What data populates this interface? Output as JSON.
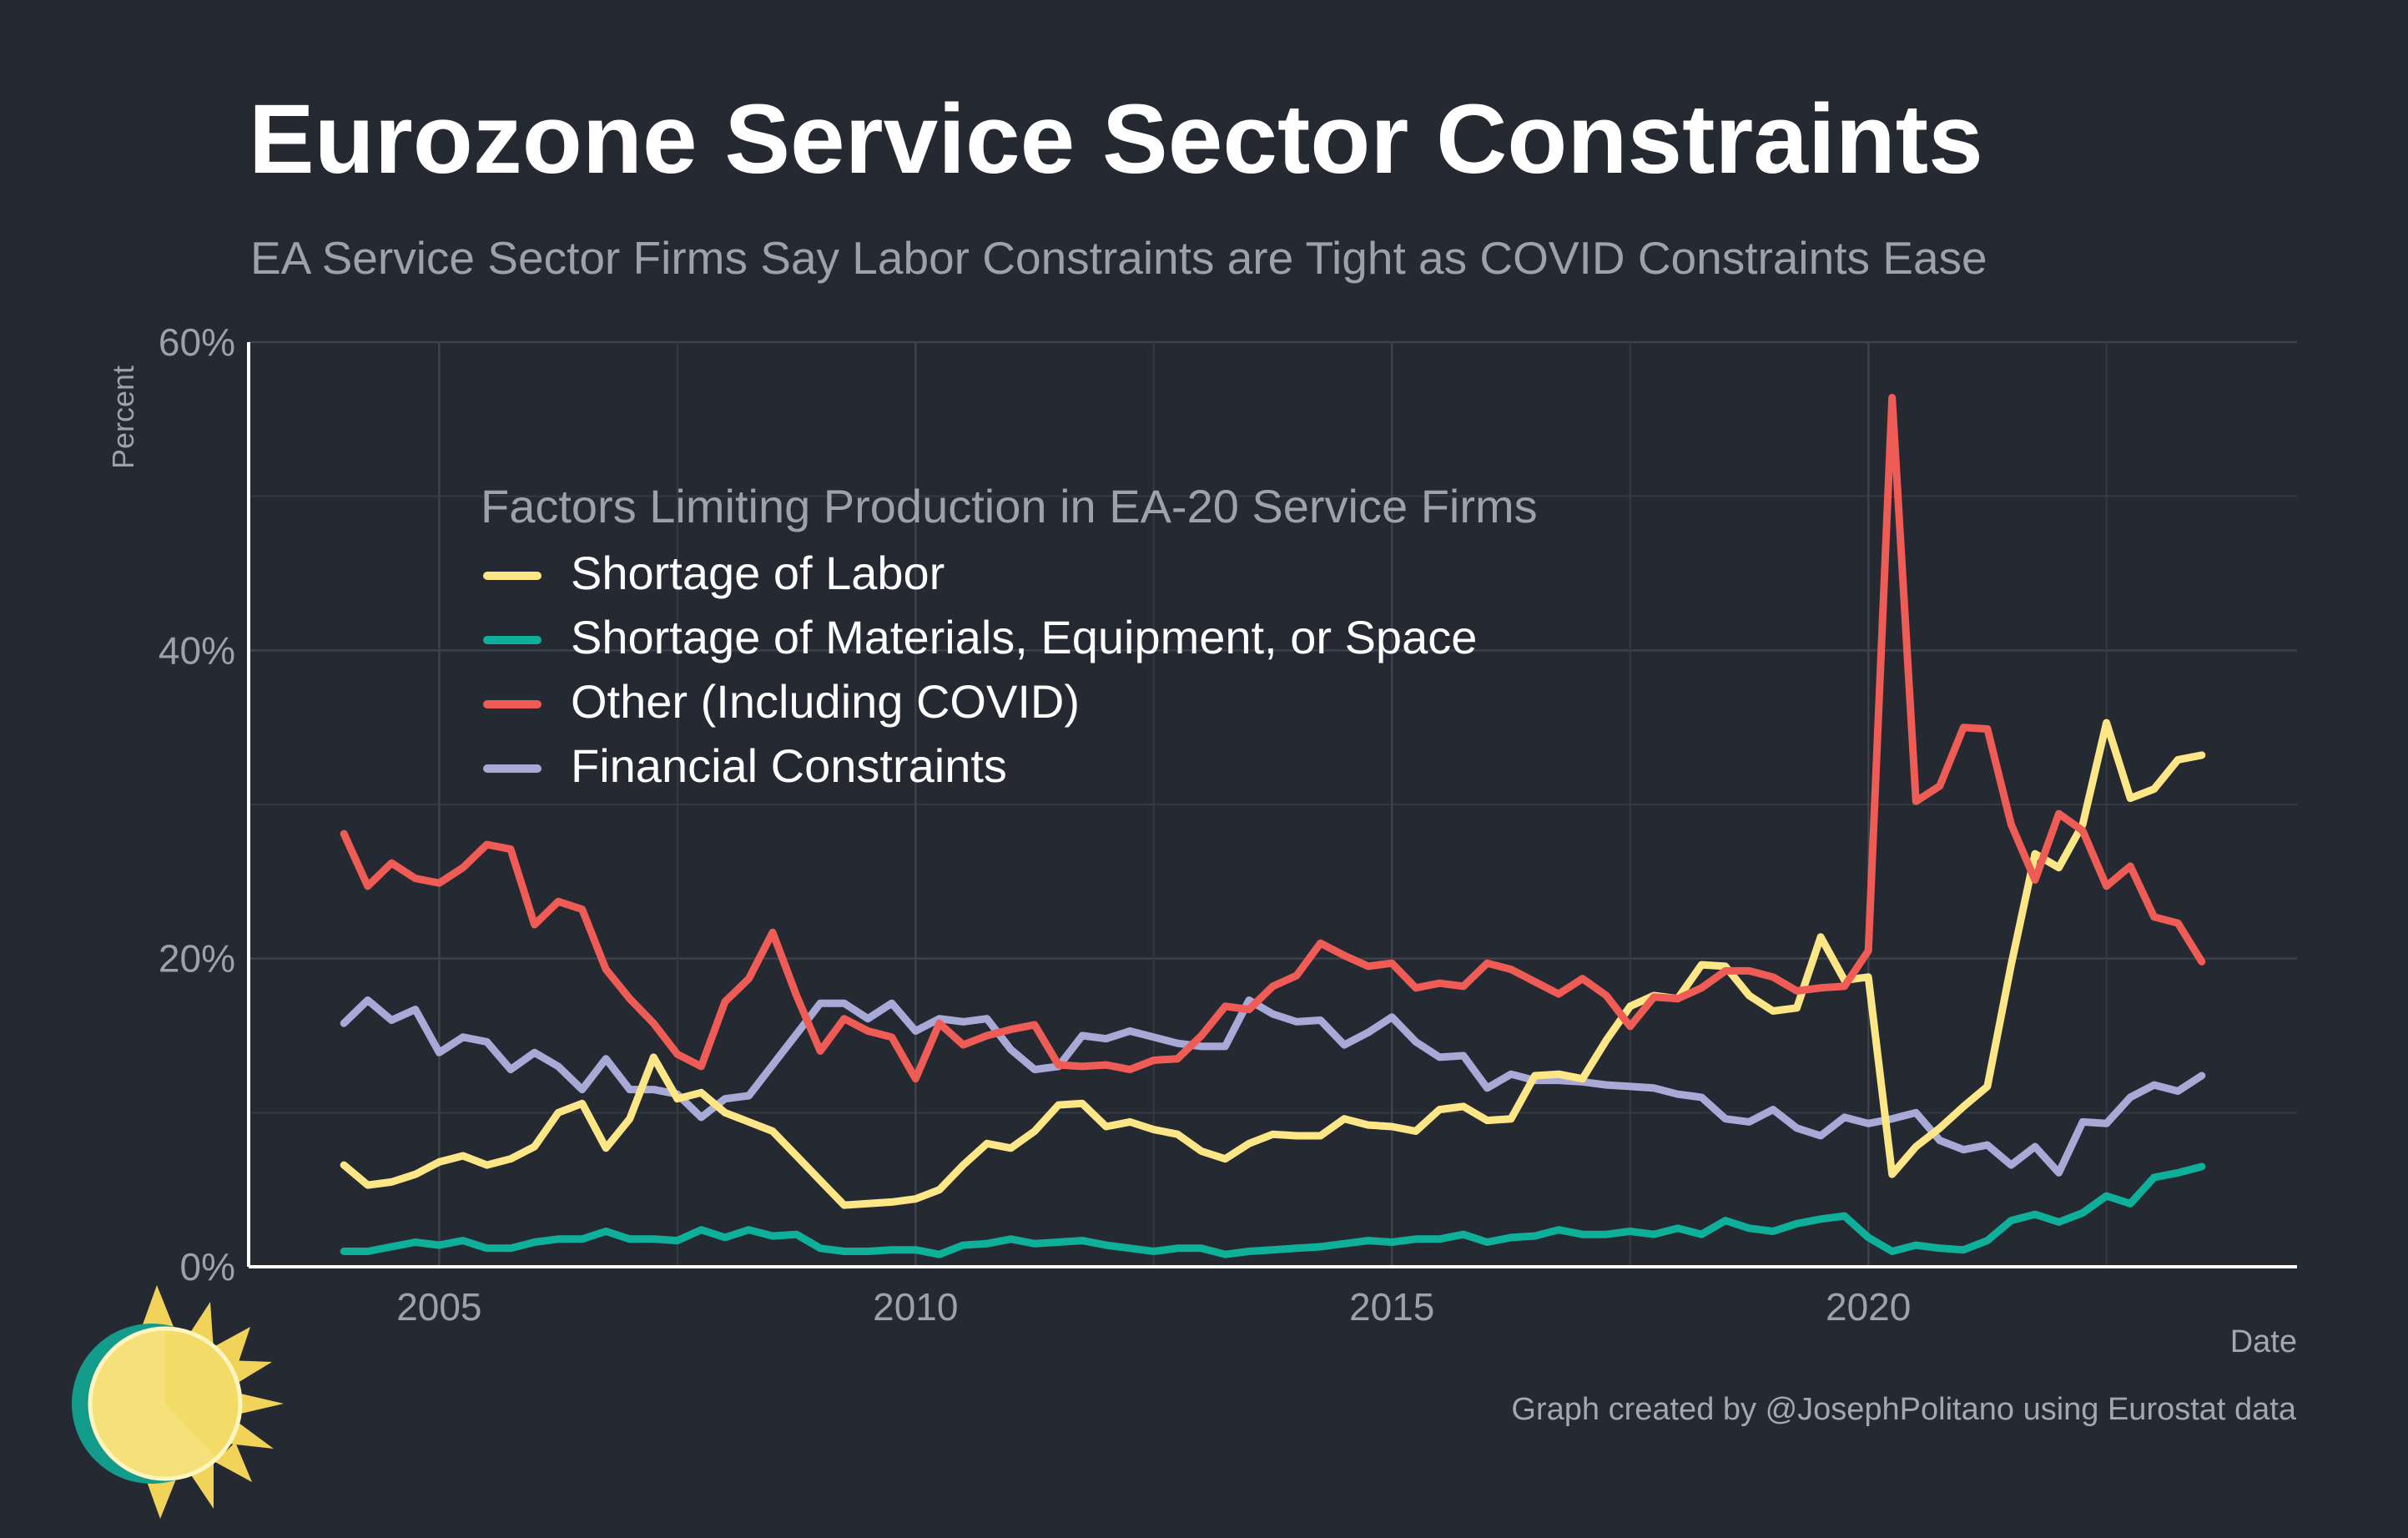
{
  "title": "Eurozone Service Sector Constraints",
  "subtitle": "EA Service Sector Firms Say Labor Constraints are Tight as COVID Constraints Ease",
  "credit": "Graph created by @JosephPolitano using Eurostat data",
  "chart_data": {
    "type": "line",
    "xlabel": "Date",
    "ylabel": "Percent",
    "xlim": [
      2003.0,
      2024.5
    ],
    "ylim": [
      0,
      60
    ],
    "x_ticks": [
      2005,
      2010,
      2015,
      2020
    ],
    "x_tick_labels": [
      "2005",
      "2010",
      "2015",
      "2020"
    ],
    "y_ticks": [
      0,
      20,
      40,
      60
    ],
    "y_tick_labels": [
      "0%",
      "20%",
      "40%",
      "60%"
    ],
    "grid": true,
    "legend_title": "Factors Limiting Production in EA-20 Service Firms",
    "legend_position": "upper-left",
    "x": [
      2004.0,
      2004.25,
      2004.5,
      2004.75,
      2005.0,
      2005.25,
      2005.5,
      2005.75,
      2006.0,
      2006.25,
      2006.5,
      2006.75,
      2007.0,
      2007.25,
      2007.5,
      2007.75,
      2008.0,
      2008.25,
      2008.5,
      2008.75,
      2009.0,
      2009.25,
      2009.5,
      2009.75,
      2010.0,
      2010.25,
      2010.5,
      2010.75,
      2011.0,
      2011.25,
      2011.5,
      2011.75,
      2012.0,
      2012.25,
      2012.5,
      2012.75,
      2013.0,
      2013.25,
      2013.5,
      2013.75,
      2014.0,
      2014.25,
      2014.5,
      2014.75,
      2015.0,
      2015.25,
      2015.5,
      2015.75,
      2016.0,
      2016.25,
      2016.5,
      2016.75,
      2017.0,
      2017.25,
      2017.5,
      2017.75,
      2018.0,
      2018.25,
      2018.5,
      2018.75,
      2019.0,
      2019.25,
      2019.5,
      2019.75,
      2020.0,
      2020.25,
      2020.5,
      2020.75,
      2021.0,
      2021.25,
      2021.5,
      2021.75,
      2022.0,
      2022.25,
      2022.5,
      2022.75,
      2023.0,
      2023.25,
      2023.5
    ],
    "series": [
      {
        "name": "Shortage of Labor",
        "color": "#fde686",
        "values": [
          6.6,
          5.3,
          5.5,
          6.0,
          6.8,
          7.2,
          6.6,
          7.0,
          7.8,
          10.0,
          10.6,
          7.7,
          9.6,
          13.6,
          10.9,
          11.3,
          10.0,
          9.4,
          8.8,
          7.2,
          5.6,
          4.0,
          4.1,
          4.2,
          4.4,
          5.0,
          6.6,
          8.0,
          7.7,
          8.8,
          10.5,
          10.6,
          9.1,
          9.4,
          8.9,
          8.6,
          7.5,
          7.0,
          8.0,
          8.6,
          8.5,
          8.5,
          9.6,
          9.2,
          9.1,
          8.8,
          10.2,
          10.4,
          9.5,
          9.6,
          12.4,
          12.5,
          12.2,
          14.7,
          16.9,
          17.6,
          17.4,
          19.6,
          19.5,
          17.6,
          16.6,
          16.8,
          21.4,
          18.6,
          18.8,
          6.0,
          7.8,
          9.0,
          10.4,
          11.7,
          19.6,
          26.8,
          25.9,
          28.7,
          35.3,
          30.4,
          31.0,
          32.9,
          33.2
        ]
      },
      {
        "name": "Shortage of Materials, Equipment, or Space",
        "color": "#0fb09a",
        "values": [
          1.0,
          1.0,
          1.3,
          1.6,
          1.4,
          1.7,
          1.2,
          1.2,
          1.6,
          1.8,
          1.8,
          2.3,
          1.8,
          1.8,
          1.7,
          2.4,
          1.9,
          2.4,
          2.0,
          2.1,
          1.2,
          1.0,
          1.0,
          1.1,
          1.1,
          0.8,
          1.4,
          1.5,
          1.8,
          1.5,
          1.6,
          1.7,
          1.4,
          1.2,
          1.0,
          1.2,
          1.2,
          0.8,
          1.0,
          1.1,
          1.2,
          1.3,
          1.5,
          1.7,
          1.6,
          1.8,
          1.8,
          2.1,
          1.6,
          1.9,
          2.0,
          2.4,
          2.1,
          2.1,
          2.3,
          2.1,
          2.5,
          2.1,
          3.0,
          2.5,
          2.3,
          2.8,
          3.1,
          3.3,
          1.9,
          1.0,
          1.4,
          1.2,
          1.1,
          1.7,
          3.0,
          3.4,
          2.9,
          3.5,
          4.6,
          4.1,
          5.8,
          6.1,
          6.5
        ]
      },
      {
        "name": "Other (Including COVID)",
        "color": "#ef5b55",
        "values": [
          28.1,
          24.7,
          26.2,
          25.2,
          24.9,
          25.9,
          27.4,
          27.1,
          22.2,
          23.7,
          23.2,
          19.3,
          17.4,
          15.8,
          13.8,
          13.0,
          17.2,
          18.7,
          21.7,
          17.6,
          14.0,
          16.1,
          15.3,
          14.9,
          12.2,
          15.8,
          14.4,
          15.0,
          15.4,
          15.7,
          13.1,
          13.0,
          13.1,
          12.8,
          13.4,
          13.5,
          15.0,
          16.9,
          16.7,
          18.2,
          18.9,
          21.0,
          20.2,
          19.5,
          19.7,
          18.1,
          18.4,
          18.2,
          19.7,
          19.3,
          18.5,
          17.7,
          18.7,
          17.6,
          15.6,
          17.5,
          17.4,
          18.1,
          19.2,
          19.2,
          18.8,
          17.9,
          18.1,
          18.2,
          20.5,
          56.4,
          30.2,
          31.2,
          35.0,
          34.9,
          28.7,
          25.1,
          29.4,
          28.3,
          24.7,
          26.0,
          22.7,
          22.3,
          19.8
        ]
      },
      {
        "name": "Financial Constraints",
        "color": "#a7aad7",
        "values": [
          15.8,
          17.3,
          16.0,
          16.7,
          13.9,
          14.9,
          14.6,
          12.8,
          13.9,
          13.0,
          11.5,
          13.5,
          11.5,
          11.5,
          11.2,
          9.7,
          10.9,
          11.1,
          13.1,
          15.1,
          17.1,
          17.1,
          16.1,
          17.1,
          15.3,
          16.1,
          15.9,
          16.1,
          14.1,
          12.8,
          13.0,
          15.0,
          14.8,
          15.3,
          14.9,
          14.5,
          14.3,
          14.3,
          17.3,
          16.4,
          15.9,
          16.0,
          14.4,
          15.2,
          16.2,
          14.6,
          13.6,
          13.7,
          11.6,
          12.5,
          12.1,
          12.1,
          12.0,
          11.8,
          11.7,
          11.6,
          11.2,
          11.0,
          9.6,
          9.4,
          10.2,
          9.0,
          8.5,
          9.7,
          9.3,
          9.6,
          10.0,
          8.2,
          7.6,
          7.9,
          6.6,
          7.8,
          6.1,
          9.4,
          9.3,
          11.0,
          11.8,
          11.4,
          12.4
        ]
      }
    ]
  }
}
